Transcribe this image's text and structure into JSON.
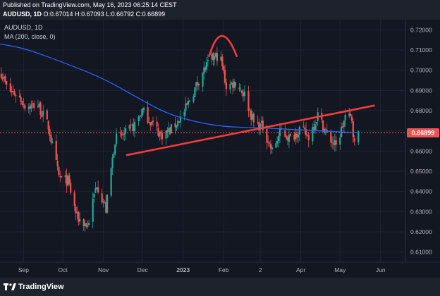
{
  "header": {
    "published": "Published on TradingView.com, May 16, 2023 06:25:14 CEST",
    "symbol": "AUDUSD, 1D",
    "ohlc": "O:0.67014 H:0.67093 L:0.66792 C:0.66899"
  },
  "legend": {
    "symbol": "AUDUSD, 1D",
    "ma": "MA (200, close, 0)"
  },
  "footer": {
    "brand": "TradingView"
  },
  "colors": {
    "background": "#131722",
    "up": "#26a69a",
    "down": "#ef5350",
    "ma": "#2962ff",
    "annotation": "#f23c3c",
    "price_label": "#ef5350",
    "axis_text": "#b2b5be"
  },
  "chart_data": {
    "type": "candlestick",
    "title": "AUDUSD, 1D",
    "ylim": [
      0.605,
      0.725
    ],
    "y_ticks": [
      0.61,
      0.62,
      0.63,
      0.64,
      0.65,
      0.66,
      0.67,
      0.68,
      0.69,
      0.7,
      0.71,
      0.72
    ],
    "y_tick_labels": [
      "0.61000",
      "0.62000",
      "0.63000",
      "0.64000",
      "0.65000",
      "0.66000",
      "0.67000",
      "0.68000",
      "0.69000",
      "0.70000",
      "0.71000",
      "0.72000"
    ],
    "x_ticks": [
      "2022-09-01",
      "2022-10-01",
      "2022-11-01",
      "2022-12-01",
      "2023-01-01",
      "2023-02-01",
      "2023-03-01",
      "2023-04-01",
      "2023-05-01",
      "2023-06-01"
    ],
    "x_tick_labels": [
      "Sep",
      "Oct",
      "Nov",
      "Dec",
      "2023",
      "Feb",
      "2",
      "Apr",
      "May",
      "Jun"
    ],
    "xlim": [
      "2022-08-14",
      "2023-06-20"
    ],
    "last_price": 0.66899,
    "last_price_label": "0.66899",
    "close_path": [
      [
        "2022-08-15",
        0.699
      ],
      [
        "2022-08-20",
        0.69
      ],
      [
        "2022-08-27",
        0.688
      ],
      [
        "2022-09-03",
        0.682
      ],
      [
        "2022-09-12",
        0.683
      ],
      [
        "2022-09-20",
        0.672
      ],
      [
        "2022-09-28",
        0.647
      ],
      [
        "2022-10-05",
        0.645
      ],
      [
        "2022-10-12",
        0.627
      ],
      [
        "2022-10-20",
        0.623
      ],
      [
        "2022-10-27",
        0.644
      ],
      [
        "2022-11-03",
        0.631
      ],
      [
        "2022-11-10",
        0.666
      ],
      [
        "2022-11-17",
        0.668
      ],
      [
        "2022-11-24",
        0.672
      ],
      [
        "2022-12-01",
        0.68
      ],
      [
        "2022-12-08",
        0.674
      ],
      [
        "2022-12-15",
        0.668
      ],
      [
        "2022-12-22",
        0.67
      ],
      [
        "2023-01-01",
        0.678
      ],
      [
        "2023-01-08",
        0.688
      ],
      [
        "2023-01-15",
        0.698
      ],
      [
        "2023-01-22",
        0.705
      ],
      [
        "2023-01-29",
        0.708
      ],
      [
        "2023-02-03",
        0.692
      ],
      [
        "2023-02-10",
        0.694
      ],
      [
        "2023-02-17",
        0.688
      ],
      [
        "2023-02-24",
        0.674
      ],
      [
        "2023-03-03",
        0.672
      ],
      [
        "2023-03-10",
        0.66
      ],
      [
        "2023-03-17",
        0.67
      ],
      [
        "2023-03-24",
        0.666
      ],
      [
        "2023-03-31",
        0.671
      ],
      [
        "2023-04-07",
        0.667
      ],
      [
        "2023-04-14",
        0.678
      ],
      [
        "2023-04-21",
        0.668
      ],
      [
        "2023-04-28",
        0.662
      ],
      [
        "2023-05-05",
        0.677
      ],
      [
        "2023-05-10",
        0.676
      ],
      [
        "2023-05-12",
        0.663
      ],
      [
        "2023-05-15",
        0.669
      ]
    ],
    "ma200": [
      [
        "2022-08-14",
        0.713
      ],
      [
        "2022-09-01",
        0.711
      ],
      [
        "2022-10-01",
        0.704
      ],
      [
        "2022-11-01",
        0.696
      ],
      [
        "2022-12-01",
        0.685
      ],
      [
        "2022-12-20",
        0.6785
      ],
      [
        "2023-01-10",
        0.6745
      ],
      [
        "2023-02-01",
        0.672
      ],
      [
        "2023-03-01",
        0.6715
      ],
      [
        "2023-04-01",
        0.6705
      ],
      [
        "2023-05-01",
        0.6695
      ],
      [
        "2023-05-15",
        0.669
      ]
    ],
    "annotations": {
      "trendline": [
        [
          "2022-11-19",
          0.658
        ],
        [
          "2023-05-27",
          0.6825
        ]
      ],
      "arc": {
        "start": [
          "2023-01-21",
          0.707
        ],
        "peak": [
          "2023-01-30",
          0.717
        ],
        "end": [
          "2023-02-11",
          0.707
        ]
      }
    }
  }
}
